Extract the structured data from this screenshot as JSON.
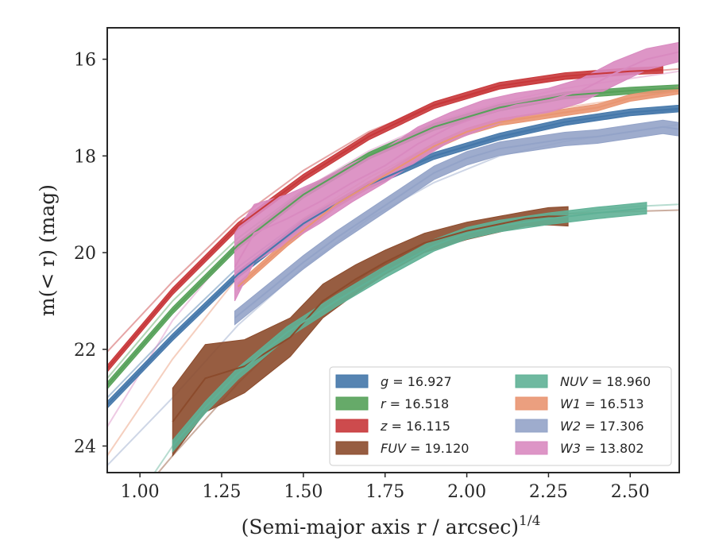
{
  "chart_data": {
    "type": "line",
    "xlabel": "(Semi-major axis r / arcsec)",
    "xlabel_exponent": "1/4",
    "ylabel": "m(< r) (mag)",
    "xlim": [
      0.9,
      2.65
    ],
    "ylim": [
      24.55,
      15.35
    ],
    "y_inverted": true,
    "grid": false,
    "legend_position": "lower-right",
    "x_ticks": [
      1.0,
      1.25,
      1.5,
      1.75,
      2.0,
      2.25,
      2.5
    ],
    "x_tick_labels": [
      "1.00",
      "1.25",
      "1.50",
      "1.75",
      "2.00",
      "2.25",
      "2.50"
    ],
    "y_ticks": [
      16,
      18,
      20,
      22,
      24
    ],
    "y_tick_labels": [
      "16",
      "18",
      "20",
      "22",
      "24"
    ],
    "series": [
      {
        "name": "g = 16.927",
        "symbol": "g",
        "value": "16.927",
        "color": "#4477aa",
        "ext_x": [
          0.9,
          1.1,
          1.3,
          1.5,
          1.7,
          1.9,
          2.1,
          2.3,
          2.5,
          2.65
        ],
        "ext_y": [
          23.0,
          21.6,
          20.3,
          19.3,
          18.55,
          18.0,
          17.62,
          17.35,
          17.15,
          17.05
        ],
        "x": [
          0.9,
          1.1,
          1.3,
          1.5,
          1.7,
          1.9,
          2.1,
          2.3,
          2.5,
          2.65
        ],
        "y": [
          23.15,
          21.75,
          20.45,
          19.4,
          18.6,
          18.0,
          17.6,
          17.3,
          17.1,
          17.02
        ],
        "band": 0.07
      },
      {
        "name": "r = 16.518",
        "symbol": "r",
        "value": "16.518",
        "color": "#55a159",
        "ext_x": [
          0.9,
          1.1,
          1.3,
          1.5,
          1.7,
          1.9,
          2.1,
          2.3,
          2.5,
          2.65
        ],
        "ext_y": [
          22.6,
          21.0,
          19.7,
          18.7,
          17.95,
          17.4,
          17.0,
          16.75,
          16.65,
          16.6
        ],
        "x": [
          0.9,
          1.1,
          1.3,
          1.5,
          1.7,
          1.9,
          2.1,
          2.3,
          2.5,
          2.65
        ],
        "y": [
          22.75,
          21.2,
          19.85,
          18.8,
          18.0,
          17.4,
          17.0,
          16.75,
          16.65,
          16.6
        ],
        "band": 0.07
      },
      {
        "name": "z = 16.115",
        "symbol": "z",
        "value": "16.115",
        "color": "#c8373a",
        "ext_x": [
          0.9,
          1.1,
          1.3,
          1.5,
          1.7,
          1.9,
          2.1,
          2.3,
          2.5,
          2.65
        ],
        "ext_y": [
          22.05,
          20.6,
          19.3,
          18.3,
          17.5,
          16.95,
          16.6,
          16.4,
          16.28,
          16.2
        ],
        "x": [
          0.9,
          1.1,
          1.3,
          1.5,
          1.7,
          1.9,
          2.1,
          2.3,
          2.5,
          2.6
        ],
        "y": [
          22.4,
          20.8,
          19.45,
          18.45,
          17.6,
          16.95,
          16.55,
          16.35,
          16.25,
          16.22
        ],
        "band": 0.07
      },
      {
        "name": "FUV = 19.120",
        "symbol": "FUV",
        "value": "19.120",
        "color": "#8c4b2c",
        "ext_x": [
          0.9,
          1.0,
          1.1,
          1.3,
          1.5,
          1.7,
          1.9,
          2.1,
          2.3,
          2.5,
          2.65
        ],
        "ext_y": [
          25.8,
          25.0,
          24.2,
          22.7,
          21.4,
          20.4,
          19.75,
          19.4,
          19.2,
          19.15,
          19.12
        ],
        "x": [
          1.1,
          1.2,
          1.32,
          1.46,
          1.56,
          1.66,
          1.75,
          1.87,
          2.0,
          2.18,
          2.25,
          2.31
        ],
        "y": [
          23.5,
          22.6,
          22.35,
          21.75,
          21.0,
          20.55,
          20.2,
          19.8,
          19.55,
          19.3,
          19.25,
          19.25
        ],
        "band_hw": [
          0.7,
          0.7,
          0.55,
          0.4,
          0.35,
          0.3,
          0.25,
          0.2,
          0.18,
          0.15,
          0.18,
          0.2
        ]
      },
      {
        "name": "NUV = 18.960",
        "symbol": "NUV",
        "value": "18.960",
        "color": "#5fb196",
        "ext_x": [
          1.0,
          1.1,
          1.3,
          1.5,
          1.7,
          1.9,
          2.1,
          2.3,
          2.5,
          2.65
        ],
        "ext_y": [
          25.0,
          24.0,
          22.5,
          21.4,
          20.5,
          19.85,
          19.45,
          19.2,
          19.05,
          19.0
        ],
        "x": [
          1.1,
          1.2,
          1.3,
          1.45,
          1.6,
          1.75,
          1.9,
          2.0,
          2.1,
          2.25,
          2.4,
          2.55
        ],
        "y": [
          24.0,
          23.2,
          22.5,
          21.65,
          21.0,
          20.4,
          19.85,
          19.6,
          19.45,
          19.3,
          19.18,
          19.08
        ],
        "band": 0.12
      },
      {
        "name": "W1 = 16.513",
        "symbol": "W1",
        "value": "16.513",
        "color": "#e99571",
        "ext_x": [
          0.9,
          1.1,
          1.3,
          1.5,
          1.7,
          1.9,
          2.1,
          2.3,
          2.5,
          2.65
        ],
        "ext_y": [
          24.2,
          22.2,
          20.5,
          19.3,
          18.45,
          17.75,
          17.3,
          17.0,
          16.8,
          16.62
        ],
        "x": [
          1.3,
          1.45,
          1.6,
          1.75,
          1.9,
          2.0,
          2.1,
          2.2,
          2.3,
          2.4,
          2.5,
          2.6,
          2.65
        ],
        "y": [
          20.7,
          19.8,
          19.0,
          18.4,
          17.8,
          17.5,
          17.3,
          17.2,
          17.1,
          17.0,
          16.8,
          16.7,
          16.65
        ],
        "band": 0.07
      },
      {
        "name": "W2 = 17.306",
        "symbol": "W2",
        "value": "17.306",
        "color": "#93a3c8",
        "ext_x": [
          0.9,
          1.1,
          1.3,
          1.5,
          1.7,
          1.9,
          2.1,
          2.3,
          2.5,
          2.65
        ],
        "ext_y": [
          24.4,
          23.0,
          21.5,
          20.3,
          19.3,
          18.55,
          18.0,
          17.7,
          17.5,
          17.35
        ],
        "x": [
          1.29,
          1.4,
          1.5,
          1.6,
          1.7,
          1.8,
          1.9,
          2.0,
          2.1,
          2.2,
          2.3,
          2.4,
          2.5,
          2.6,
          2.65
        ],
        "y": [
          21.35,
          20.75,
          20.2,
          19.7,
          19.25,
          18.8,
          18.35,
          18.05,
          17.85,
          17.75,
          17.65,
          17.6,
          17.5,
          17.4,
          17.45
        ],
        "band": 0.14
      },
      {
        "name": "W3 = 13.802",
        "symbol": "W3",
        "value": "13.802",
        "color": "#d98ac0",
        "ext_x": [
          0.9,
          1.1,
          1.3,
          1.5,
          1.7,
          1.9,
          2.1,
          2.3,
          2.5,
          2.65
        ],
        "ext_y": [
          23.6,
          21.4,
          19.8,
          18.7,
          17.9,
          17.3,
          16.9,
          16.6,
          16.4,
          16.25
        ],
        "x": [
          1.29,
          1.35,
          1.45,
          1.55,
          1.65,
          1.75,
          1.85,
          1.95,
          2.05,
          2.15,
          2.25,
          2.35,
          2.45,
          2.55,
          2.65
        ],
        "y": [
          20.3,
          19.6,
          19.3,
          18.95,
          18.55,
          18.2,
          17.75,
          17.4,
          17.15,
          16.95,
          16.85,
          16.65,
          16.3,
          16.0,
          15.85
        ],
        "band_hw": [
          0.7,
          0.6,
          0.5,
          0.45,
          0.4,
          0.35,
          0.35,
          0.3,
          0.3,
          0.25,
          0.25,
          0.25,
          0.25,
          0.22,
          0.2
        ]
      }
    ]
  }
}
